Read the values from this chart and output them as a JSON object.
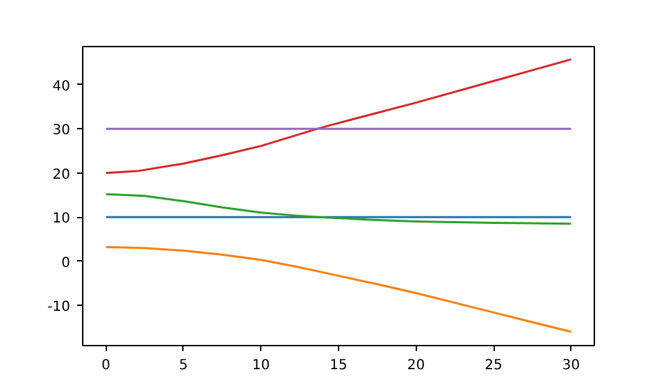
{
  "chart_data": {
    "type": "line",
    "xlim": [
      -1.5,
      31.5
    ],
    "ylim": [
      -19.1,
      48.6
    ],
    "xticks": [
      0,
      5,
      10,
      15,
      20,
      25,
      30
    ],
    "yticks": [
      -10,
      0,
      10,
      20,
      30,
      40
    ],
    "grid": false,
    "marker": "none",
    "line_style": "solid",
    "series": [
      {
        "color": "#1f77b4",
        "x": [
          0,
          30
        ],
        "values": [
          10,
          10
        ]
      },
      {
        "color": "#ff7f0e",
        "x": [
          0,
          2.5,
          5,
          7.5,
          10,
          12.5,
          15,
          17.5,
          20,
          25,
          30
        ],
        "values": [
          3.2,
          3.0,
          2.4,
          1.5,
          0.3,
          -1.4,
          -3.3,
          -5.2,
          -7.2,
          -11.6,
          -16.0
        ]
      },
      {
        "color": "#2ca02c",
        "x": [
          0,
          2.5,
          5,
          7.5,
          10,
          12,
          13.7,
          17,
          20,
          25,
          30
        ],
        "values": [
          15.2,
          14.8,
          13.6,
          12.2,
          11.0,
          10.4,
          10.0,
          9.4,
          9.0,
          8.7,
          8.5
        ]
      },
      {
        "color": "#d62728",
        "x": [
          0,
          2,
          5,
          7.5,
          10,
          13.65,
          15,
          20,
          25,
          30
        ],
        "values": [
          20,
          20.4,
          22.1,
          24,
          26.1,
          30,
          31.3,
          35.9,
          40.8,
          45.7
        ]
      },
      {
        "color": "#9467bd",
        "x": [
          0,
          30
        ],
        "values": [
          30,
          30
        ]
      }
    ]
  }
}
